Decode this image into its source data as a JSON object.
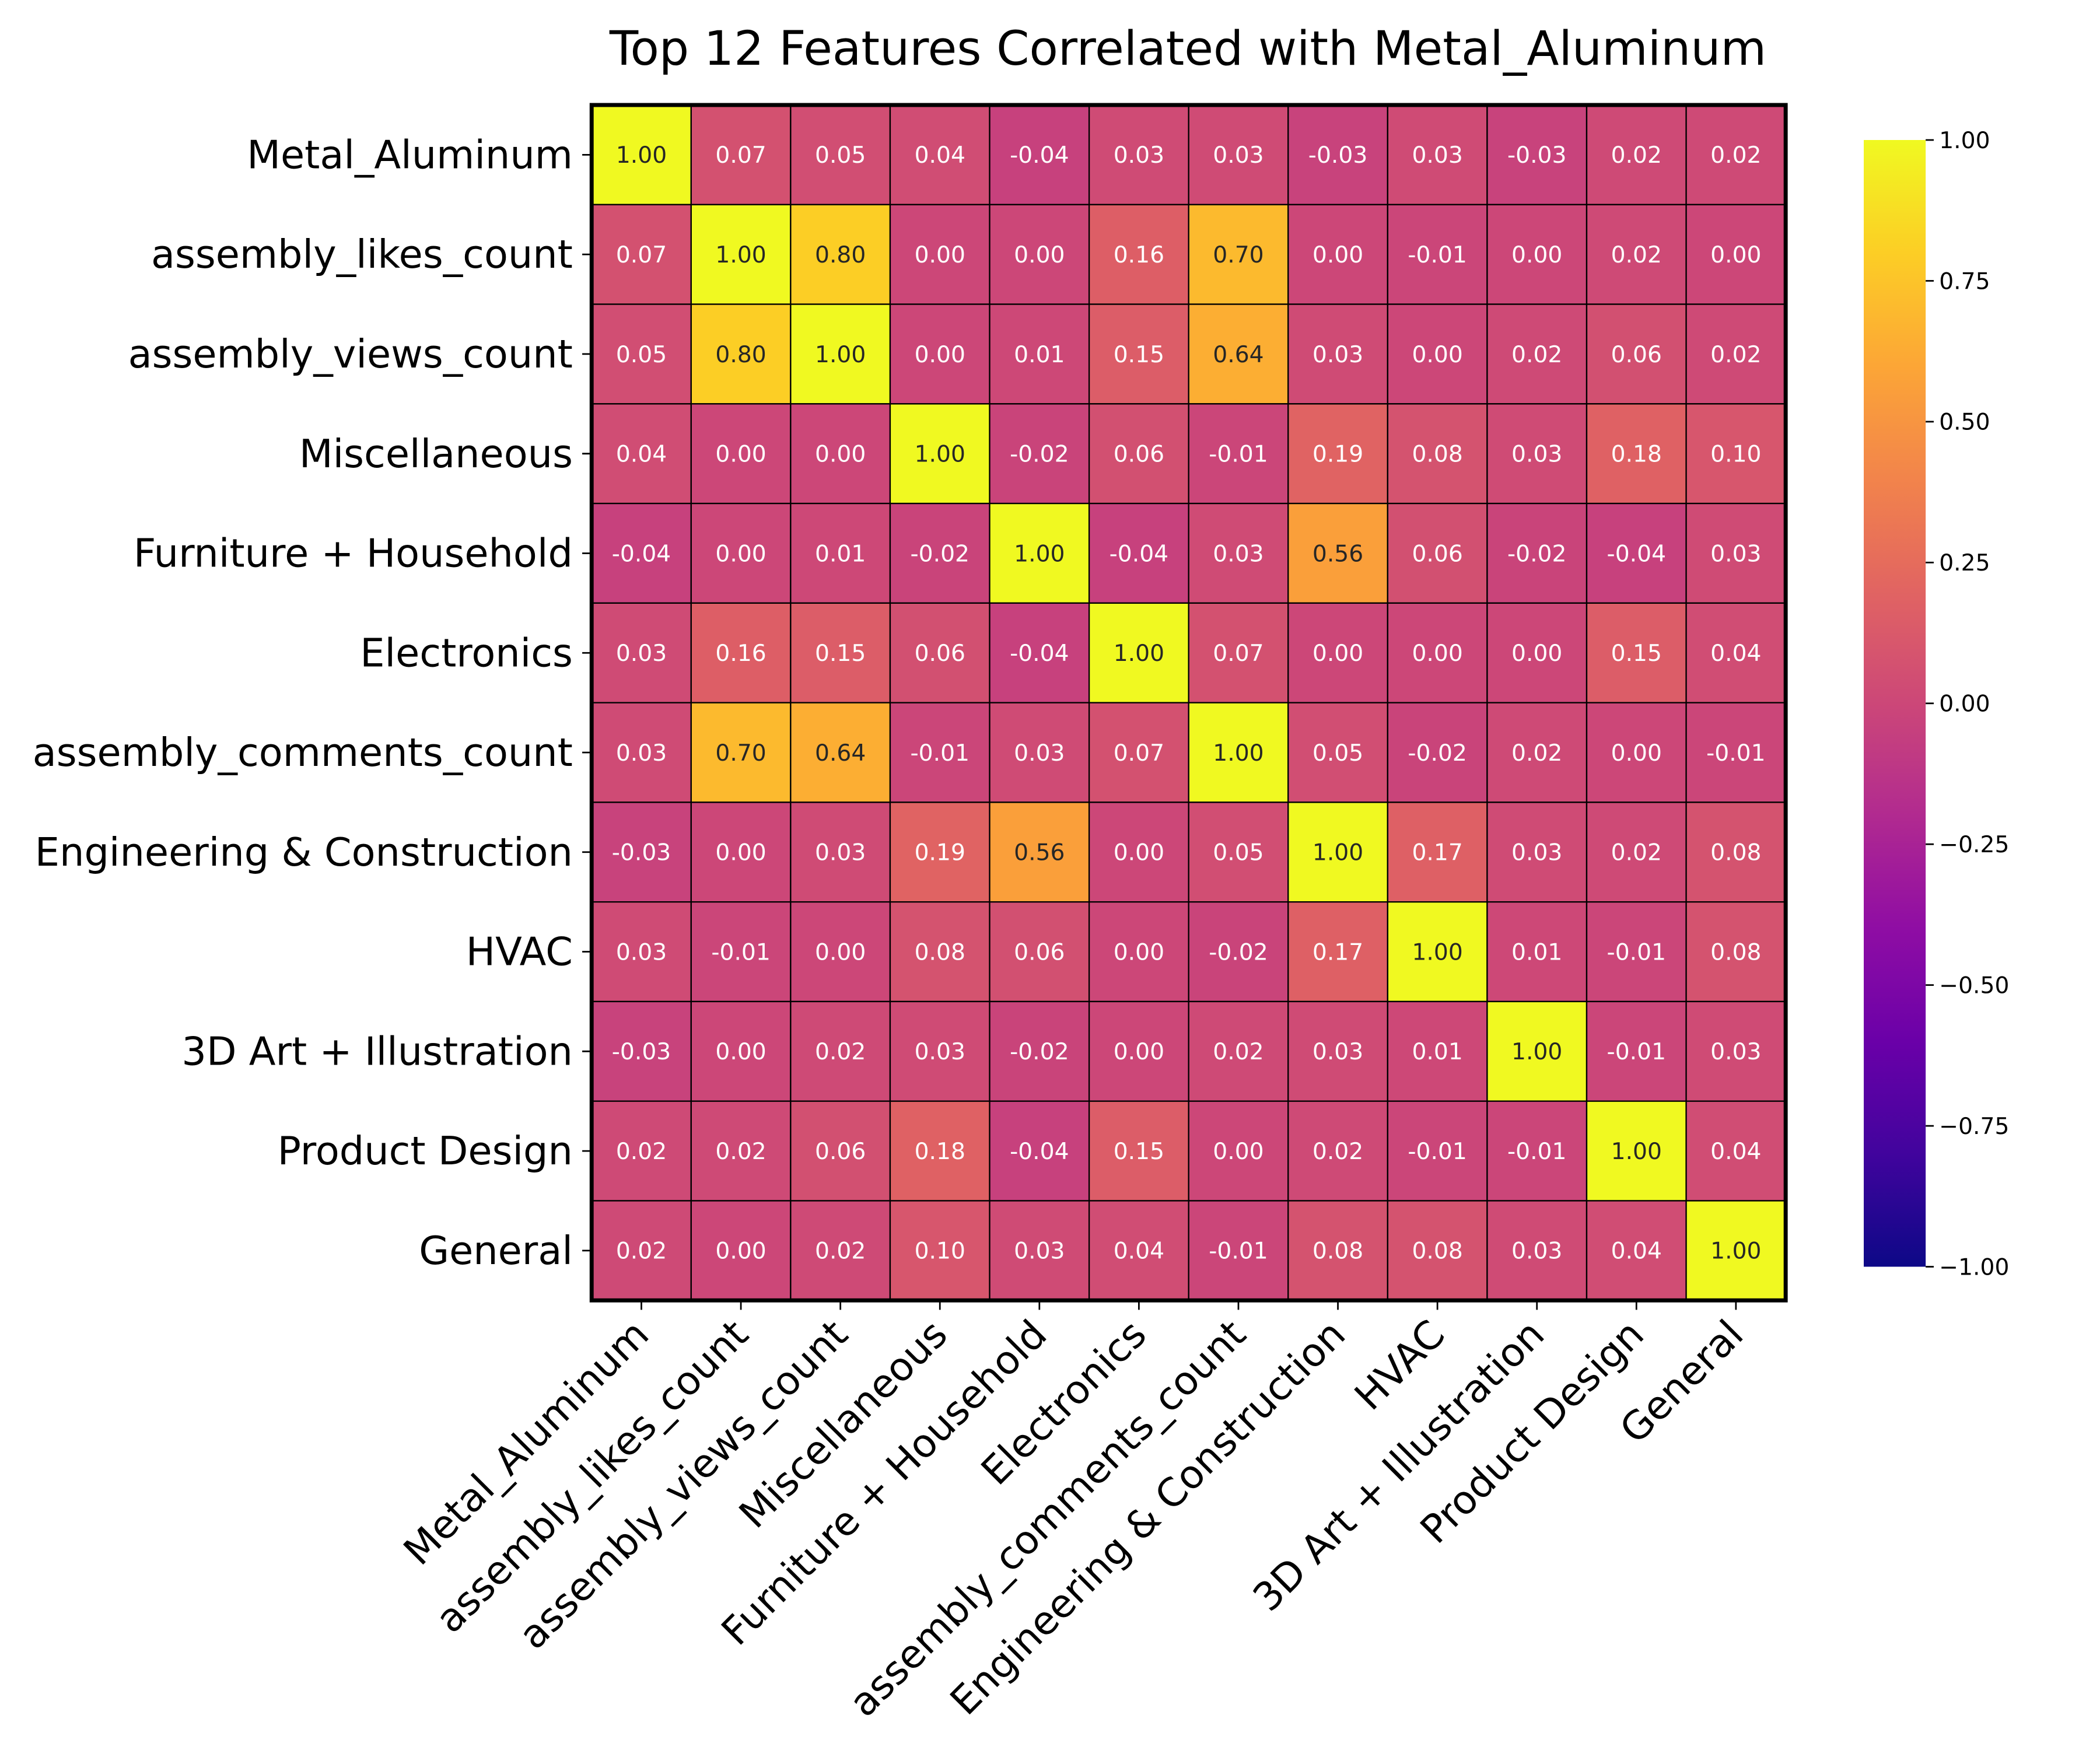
{
  "chart_data": {
    "type": "heatmap",
    "title": "Top 12 Features Correlated with Metal_Aluminum",
    "labels": [
      "Metal_Aluminum",
      "assembly_likes_count",
      "assembly_views_count",
      "Miscellaneous",
      "Furniture + Household",
      "Electronics",
      "assembly_comments_count",
      "Engineering & Construction",
      "HVAC",
      "3D Art + Illustration",
      "Product Design",
      "General"
    ],
    "matrix": [
      [
        1.0,
        0.07,
        0.05,
        0.04,
        -0.04,
        0.03,
        0.03,
        -0.03,
        0.03,
        -0.03,
        0.02,
        0.02
      ],
      [
        0.07,
        1.0,
        0.8,
        0.0,
        -0.0,
        0.16,
        0.7,
        -0.0,
        -0.01,
        -0.0,
        0.02,
        0.0
      ],
      [
        0.05,
        0.8,
        1.0,
        0.0,
        0.01,
        0.15,
        0.64,
        0.03,
        0.0,
        0.02,
        0.06,
        0.02
      ],
      [
        0.04,
        0.0,
        0.0,
        1.0,
        -0.02,
        0.06,
        -0.01,
        0.19,
        0.08,
        0.03,
        0.18,
        0.1
      ],
      [
        -0.04,
        -0.0,
        0.01,
        -0.02,
        1.0,
        -0.04,
        0.03,
        0.56,
        0.06,
        -0.02,
        -0.04,
        0.03
      ],
      [
        0.03,
        0.16,
        0.15,
        0.06,
        -0.04,
        1.0,
        0.07,
        0.0,
        0.0,
        -0.0,
        0.15,
        0.04
      ],
      [
        0.03,
        0.7,
        0.64,
        -0.01,
        0.03,
        0.07,
        1.0,
        0.05,
        -0.02,
        0.02,
        -0.0,
        -0.01
      ],
      [
        -0.03,
        -0.0,
        0.03,
        0.19,
        0.56,
        0.0,
        0.05,
        1.0,
        0.17,
        0.03,
        0.02,
        0.08
      ],
      [
        0.03,
        -0.01,
        0.0,
        0.08,
        0.06,
        0.0,
        -0.02,
        0.17,
        1.0,
        0.01,
        -0.01,
        0.08
      ],
      [
        -0.03,
        -0.0,
        0.02,
        0.03,
        -0.02,
        -0.0,
        0.02,
        0.03,
        0.01,
        1.0,
        -0.01,
        0.03
      ],
      [
        0.02,
        0.02,
        0.06,
        0.18,
        -0.04,
        0.15,
        -0.0,
        0.02,
        -0.01,
        -0.01,
        1.0,
        0.04
      ],
      [
        0.02,
        0.0,
        0.02,
        0.1,
        0.03,
        0.04,
        -0.01,
        0.08,
        0.08,
        0.03,
        0.04,
        1.0
      ]
    ],
    "value_format": "2-decimal",
    "colormap": "plasma",
    "vmin": -1.0,
    "vmax": 1.0,
    "colorbar_ticks": [
      "1.00",
      "0.75",
      "0.50",
      "0.25",
      "0.00",
      "−0.25",
      "−0.50",
      "−0.75",
      "−1.00"
    ],
    "colorbar_tick_values": [
      1.0,
      0.75,
      0.5,
      0.25,
      0.0,
      -0.25,
      -0.5,
      -0.75,
      -1.0
    ],
    "grid": true,
    "cell_border_color": "#000000"
  }
}
